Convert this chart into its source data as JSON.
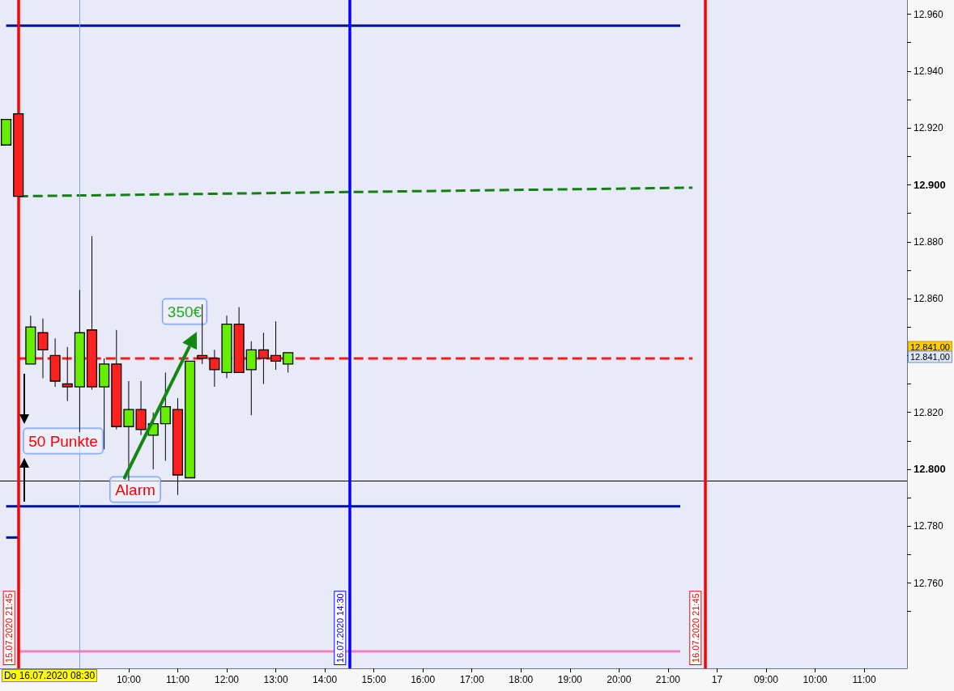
{
  "chart_data": {
    "type": "candlestick",
    "categories": [
      null,
      null,
      null,
      null,
      null,
      null,
      null,
      null,
      null,
      null,
      "10:00",
      null,
      null,
      null,
      "11:00",
      null,
      null,
      null,
      "12:00",
      null,
      null,
      null,
      "13:00",
      null,
      null,
      null,
      "14:00",
      null,
      null,
      null,
      "15:00",
      null,
      null,
      null,
      "16:00",
      null,
      null,
      null,
      "17:00",
      null,
      null,
      null,
      "18:00",
      null,
      null,
      null,
      "19:00",
      null,
      null,
      null,
      "20:00",
      null,
      null,
      null,
      "21:00",
      null,
      null,
      null,
      "17",
      null,
      null,
      null,
      "09:00",
      null,
      null,
      null,
      "10:00",
      null,
      null,
      null,
      "11:00",
      null,
      null,
      null
    ],
    "ohlc": [
      [
        12914,
        12923,
        12914,
        12923
      ],
      [
        12925,
        12925,
        12896,
        12896
      ],
      [
        12837,
        12854,
        12837,
        12850
      ],
      [
        12848,
        12853,
        12832,
        12842
      ],
      [
        12840,
        12846,
        12829,
        12831
      ],
      [
        12830,
        12843,
        12824,
        12829
      ],
      [
        12829,
        12863,
        12813,
        12848
      ],
      [
        12849,
        12882,
        12828,
        12829
      ],
      [
        12829,
        12839,
        12807,
        12837
      ],
      [
        12837,
        12849,
        12814,
        12815
      ],
      [
        12815,
        12831,
        12796,
        12821
      ],
      [
        12821,
        12831,
        12812,
        12814
      ],
      [
        12812,
        12820,
        12800,
        12816
      ],
      [
        12816,
        12834,
        12803,
        12822
      ],
      [
        12821,
        12825,
        12791,
        12798
      ],
      [
        12797,
        12838,
        12797,
        12838
      ],
      [
        12840,
        12858,
        12837,
        12839
      ],
      [
        12839,
        12842,
        12829,
        12835
      ],
      [
        12834,
        12854,
        12832,
        12851
      ],
      [
        12851,
        12857,
        12834,
        12834
      ],
      [
        12835,
        12845,
        12819,
        12842
      ],
      [
        12842,
        12848,
        12830,
        12839
      ],
      [
        12840,
        12852,
        12835,
        12838
      ],
      [
        12837,
        12841,
        12834,
        12841
      ],
      null,
      null,
      null,
      null,
      null,
      null,
      null,
      null,
      null,
      null,
      null,
      null,
      null,
      null,
      null,
      null,
      null,
      null,
      null,
      null,
      null,
      null,
      null,
      null,
      null,
      null,
      null,
      null,
      null,
      null,
      null,
      null,
      null,
      null,
      null,
      null,
      null,
      null,
      null,
      null,
      null,
      null,
      null,
      null,
      null,
      null,
      null,
      null,
      null,
      null
    ],
    "colors": [
      "#66ee00",
      "#ff2020",
      "#66ee00",
      "#ff2020",
      "#ff2020",
      "#ff2020",
      "#66ee00",
      "#ff2020",
      "#66ee00",
      "#ff2020",
      "#66ee00",
      "#ff2020",
      "#66ee00",
      "#66ee00",
      "#ff2020",
      "#66ee00",
      "#ff2020",
      "#ff2020",
      "#66ee00",
      "#ff2020",
      "#66ee00",
      "#ff2020",
      "#ff2020",
      "#66ee00",
      null,
      null,
      null,
      null,
      null,
      null,
      null,
      null,
      null,
      null,
      null,
      null,
      null,
      null,
      null,
      null,
      null,
      null,
      null,
      null,
      null,
      null,
      null,
      null,
      null,
      null,
      null,
      null,
      null,
      null,
      null,
      null,
      null,
      null,
      null,
      null,
      null,
      null,
      null,
      null,
      null,
      null,
      null,
      null,
      null,
      null,
      null,
      null,
      null,
      null
    ],
    "marker": "none",
    "series": [
      {
        "type": "line",
        "color": "#00139a",
        "line_style": "solid",
        "values": [
          12956,
          null,
          null,
          null,
          null,
          null,
          null,
          null,
          null,
          null,
          null,
          null,
          null,
          null,
          null,
          null,
          null,
          null,
          null,
          null,
          null,
          null,
          null,
          null,
          null,
          null,
          null,
          null,
          null,
          null,
          null,
          null,
          null,
          null,
          null,
          null,
          null,
          null,
          null,
          null,
          null,
          null,
          null,
          null,
          null,
          null,
          null,
          null,
          null,
          null,
          null,
          null,
          null,
          null,
          null,
          12956,
          null,
          null,
          null,
          null,
          null,
          null,
          null,
          null,
          null,
          null,
          null,
          null,
          null,
          null,
          null,
          null,
          null,
          null
        ]
      },
      {
        "type": "line",
        "color": "#00139a",
        "line_style": "solid",
        "values": [
          12787,
          null,
          null,
          null,
          null,
          null,
          null,
          null,
          null,
          null,
          null,
          null,
          null,
          null,
          null,
          null,
          null,
          null,
          null,
          null,
          null,
          null,
          null,
          null,
          null,
          null,
          null,
          null,
          null,
          null,
          null,
          null,
          null,
          null,
          null,
          null,
          null,
          null,
          null,
          null,
          null,
          null,
          null,
          null,
          null,
          null,
          null,
          null,
          null,
          null,
          null,
          null,
          null,
          null,
          null,
          12787,
          null,
          null,
          null,
          null,
          null,
          null,
          null,
          null,
          null,
          null,
          null,
          null,
          null,
          null,
          null,
          null,
          null,
          null
        ]
      },
      {
        "type": "line",
        "color": "#00139a",
        "line_style": "solid",
        "values": [
          12776,
          12776,
          null,
          null,
          null,
          null,
          null,
          null,
          null,
          null,
          null,
          null,
          null,
          null,
          null,
          null,
          null,
          null,
          null,
          null,
          null,
          null,
          null,
          null,
          null,
          null,
          null,
          null,
          null,
          null,
          null,
          null,
          null,
          null,
          null,
          null,
          null,
          null,
          null,
          null,
          null,
          null,
          null,
          null,
          null,
          null,
          null,
          null,
          null,
          null,
          null,
          null,
          null,
          null,
          null,
          null,
          null,
          null,
          null,
          null,
          null,
          null,
          null,
          null,
          null,
          null,
          null,
          null,
          null,
          null,
          null,
          null,
          null,
          null
        ]
      },
      {
        "type": "line",
        "color": "#f080c0",
        "line_style": "solid",
        "values": [
          null,
          12736,
          null,
          null,
          null,
          null,
          null,
          null,
          null,
          null,
          null,
          null,
          null,
          null,
          null,
          null,
          null,
          null,
          null,
          null,
          null,
          null,
          null,
          null,
          null,
          null,
          null,
          null,
          null,
          null,
          null,
          null,
          null,
          null,
          null,
          null,
          null,
          null,
          null,
          null,
          null,
          null,
          null,
          null,
          null,
          null,
          null,
          null,
          null,
          null,
          null,
          null,
          null,
          null,
          null,
          12736,
          null,
          null,
          null,
          null,
          null,
          null,
          null,
          null,
          null,
          null,
          null,
          null,
          null,
          null,
          null,
          null,
          null,
          null
        ]
      },
      {
        "type": "line",
        "color": "#128012",
        "line_style": "dashed",
        "values": [
          null,
          12896,
          null,
          null,
          null,
          null,
          null,
          null,
          null,
          null,
          null,
          null,
          null,
          null,
          null,
          null,
          null,
          null,
          null,
          null,
          null,
          null,
          null,
          null,
          null,
          null,
          null,
          null,
          null,
          null,
          null,
          null,
          null,
          null,
          null,
          null,
          null,
          null,
          null,
          null,
          null,
          null,
          null,
          null,
          null,
          null,
          null,
          null,
          null,
          null,
          null,
          null,
          null,
          null,
          null,
          null,
          12899,
          null,
          null,
          null,
          null,
          null,
          null,
          null,
          null,
          null,
          null,
          null,
          null,
          null,
          null,
          null,
          null,
          null
        ]
      },
      {
        "type": "line",
        "color": "#ff1a1a",
        "line_style": "dashed",
        "values": [
          null,
          12839,
          null,
          null,
          null,
          null,
          null,
          null,
          null,
          null,
          null,
          null,
          null,
          null,
          null,
          null,
          null,
          null,
          null,
          null,
          null,
          null,
          null,
          null,
          null,
          null,
          null,
          null,
          null,
          null,
          null,
          null,
          null,
          null,
          null,
          null,
          null,
          null,
          null,
          null,
          null,
          null,
          null,
          null,
          null,
          null,
          null,
          null,
          null,
          null,
          null,
          null,
          null,
          null,
          null,
          null,
          12839,
          null,
          null,
          null,
          null,
          null,
          null,
          null,
          null,
          null,
          null,
          null,
          null,
          null,
          null,
          null,
          null,
          null
        ]
      }
    ],
    "ref_lines": [
      {
        "axis": "y",
        "value": 12796,
        "color": "#000000"
      }
    ],
    "annotations": [
      "50 Punkte",
      "Alarm",
      "350€",
      "Do 16.07.2020 08:30",
      "12.841,00",
      "12.841,00",
      "15.07.2020 21:45",
      "16.07.2020 14:30",
      "16.07.2020 21:45"
    ],
    "ylim": [
      12730,
      12965
    ],
    "yticks": [
      {
        "value": 12750,
        "label": null
      },
      {
        "value": 12760,
        "label": "12.760"
      },
      {
        "value": 12770,
        "label": null
      },
      {
        "value": 12780,
        "label": "12.780"
      },
      {
        "value": 12790,
        "label": null
      },
      {
        "value": 12800,
        "label": "12.800"
      },
      {
        "value": 12810,
        "label": null
      },
      {
        "value": 12820,
        "label": "12.820"
      },
      {
        "value": 12830,
        "label": null
      },
      {
        "value": 12840,
        "label": null
      },
      {
        "value": 12850,
        "label": null
      },
      {
        "value": 12860,
        "label": "12.860"
      },
      {
        "value": 12870,
        "label": null
      },
      {
        "value": 12880,
        "label": "12.880"
      },
      {
        "value": 12890,
        "label": null
      },
      {
        "value": 12900,
        "label": "12.900"
      },
      {
        "value": 12910,
        "label": null
      },
      {
        "value": 12920,
        "label": "12.920"
      },
      {
        "value": 12930,
        "label": null
      },
      {
        "value": 12940,
        "label": "12.940"
      },
      {
        "value": 12950,
        "label": null
      },
      {
        "value": 12960,
        "label": "12.960"
      }
    ]
  }
}
